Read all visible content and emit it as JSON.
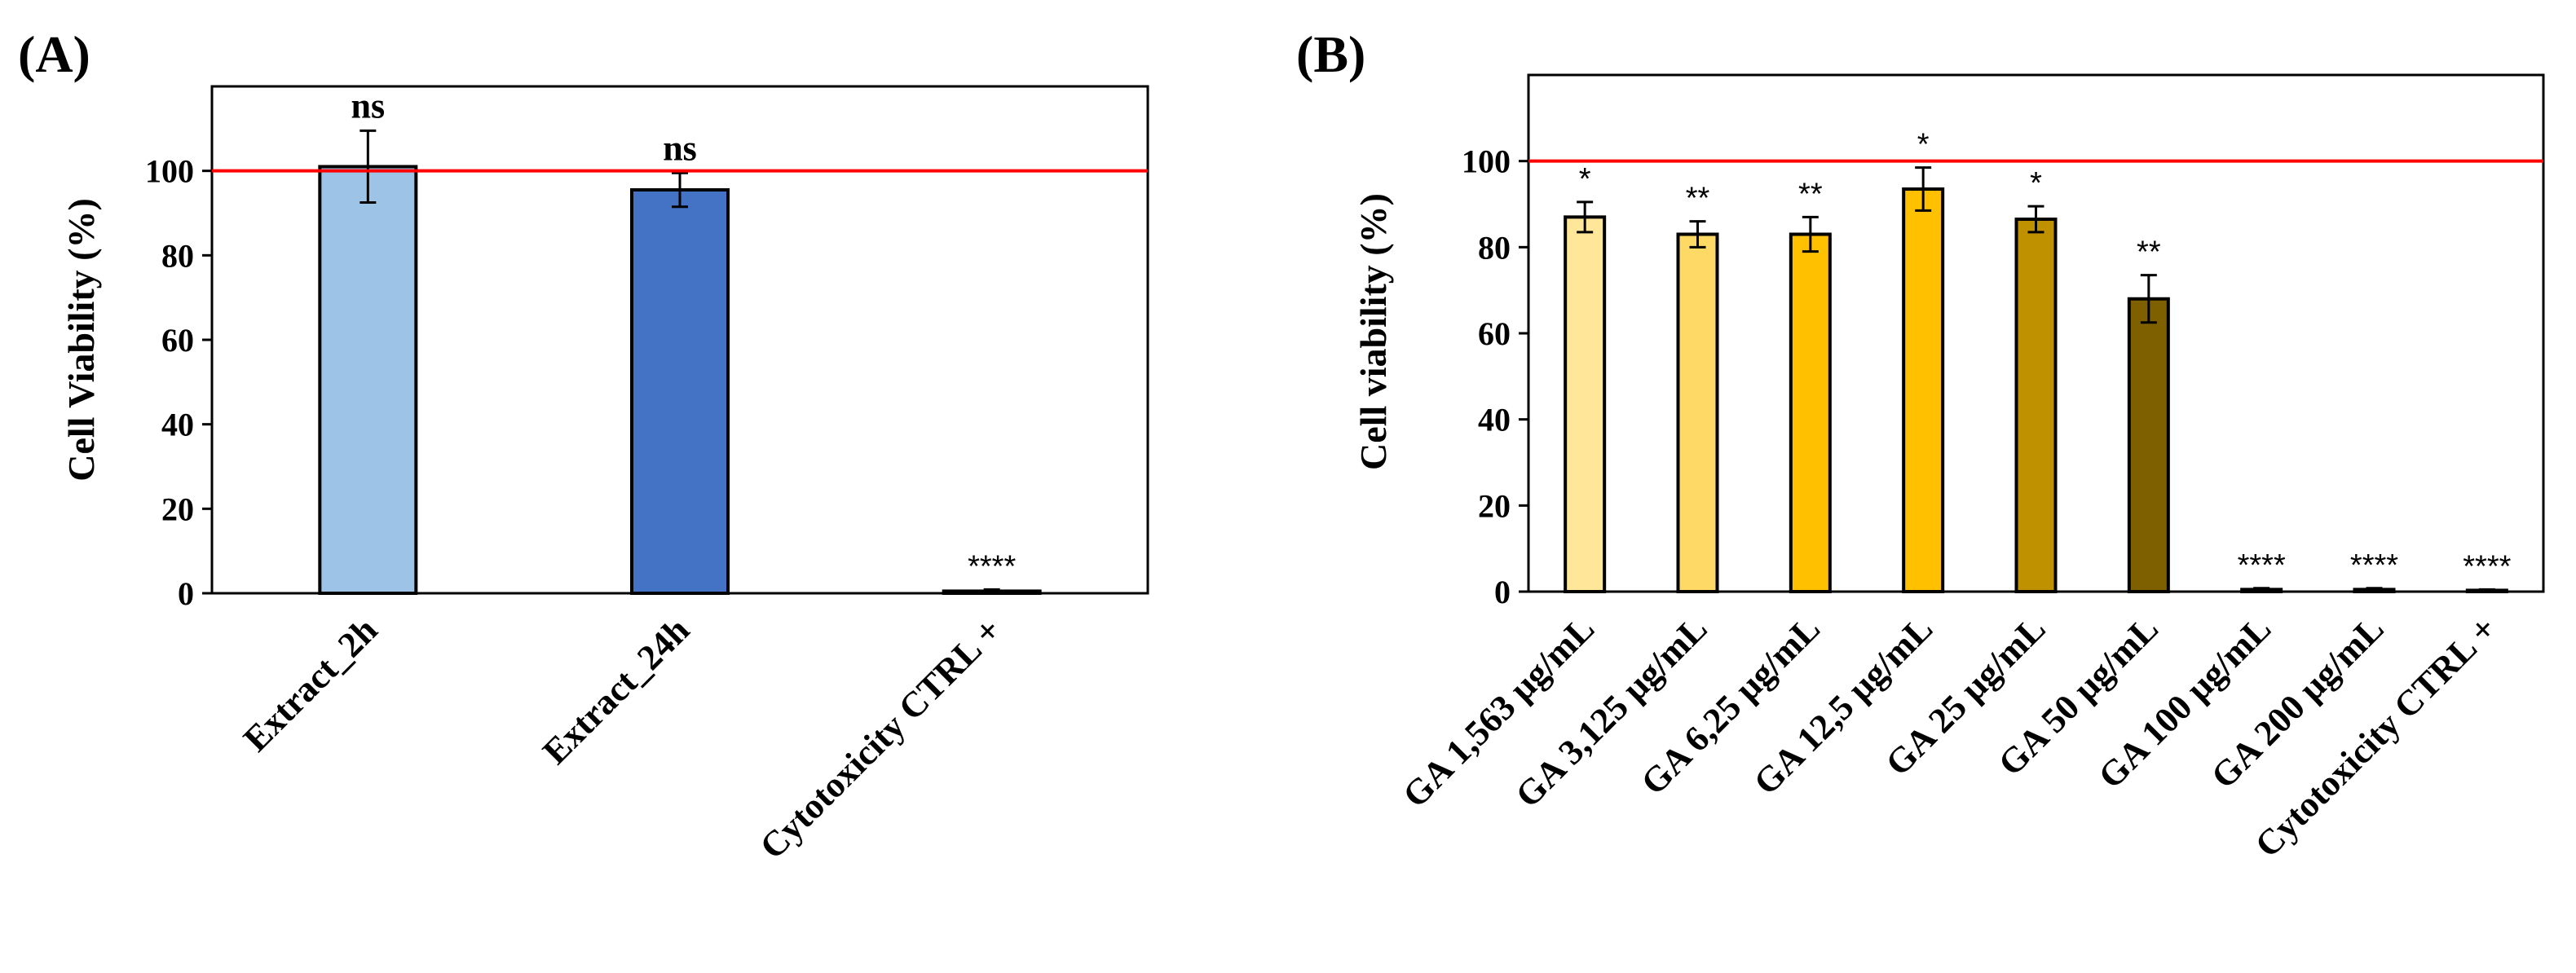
{
  "chart_data": [
    {
      "type": "bar",
      "panel_label": "(A)",
      "title": "",
      "xlabel": "",
      "ylabel": "Cell Viability (%)",
      "ylim": [
        0,
        120
      ],
      "yticks": [
        0,
        20,
        40,
        60,
        80,
        100
      ],
      "reference_line": {
        "value": 100,
        "color": "#ff0000"
      },
      "grid": false,
      "categories": [
        "Extract_2h",
        "Extract_24h",
        "Cytotoxicity CTRL +"
      ],
      "values": [
        101,
        95.5,
        0.5
      ],
      "errors": [
        8.5,
        4,
        0.4
      ],
      "significance": [
        "ns",
        "ns",
        "****"
      ],
      "colors": [
        "#9dc3e6",
        "#4472c4",
        "#4472c4"
      ]
    },
    {
      "type": "bar",
      "panel_label": "(B)",
      "title": "",
      "xlabel": "",
      "ylabel": "Cell viability (%)",
      "ylim": [
        0,
        120
      ],
      "yticks": [
        0,
        20,
        40,
        60,
        80,
        100
      ],
      "reference_line": {
        "value": 100,
        "color": "#ff0000"
      },
      "grid": false,
      "categories": [
        "GA 1,563 µg/mL",
        "GA 3,125 µg/mL",
        "GA 6,25 µg/mL",
        "GA 12,5 µg/mL",
        "GA 25 µg/mL",
        "GA 50 µg/mL",
        "GA 100 µg/mL",
        "GA 200 µg/mL",
        "Cytotoxicity CTRL +"
      ],
      "values": [
        87,
        83,
        83,
        93.5,
        86.5,
        68,
        0.5,
        0.5,
        0.3
      ],
      "errors": [
        3.5,
        3,
        4,
        5,
        3,
        5.5,
        0.3,
        0.3,
        0.2
      ],
      "significance": [
        "*",
        "**",
        "**",
        "*",
        "*",
        "**",
        "****",
        "****",
        "****"
      ],
      "colors": [
        "#ffe699",
        "#ffd966",
        "#ffc000",
        "#ffc000",
        "#bf9000",
        "#7f6000",
        "#7f6000",
        "#7f6000",
        "#7f6000"
      ]
    }
  ]
}
